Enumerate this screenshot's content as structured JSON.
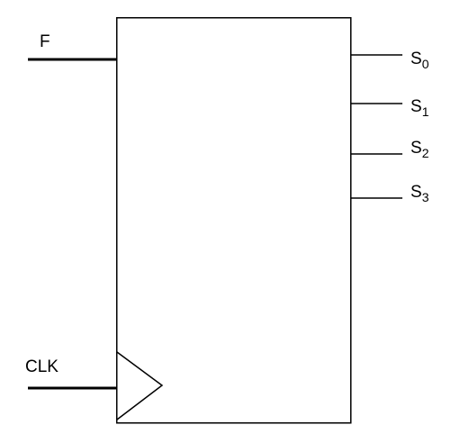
{
  "diagram": {
    "inputs": {
      "f": {
        "label": "F"
      },
      "clk": {
        "label": "CLK"
      }
    },
    "outputs": [
      {
        "base": "S",
        "sub": "0"
      },
      {
        "base": "S",
        "sub": "1"
      },
      {
        "base": "S",
        "sub": "2"
      },
      {
        "base": "S",
        "sub": "3"
      }
    ]
  }
}
